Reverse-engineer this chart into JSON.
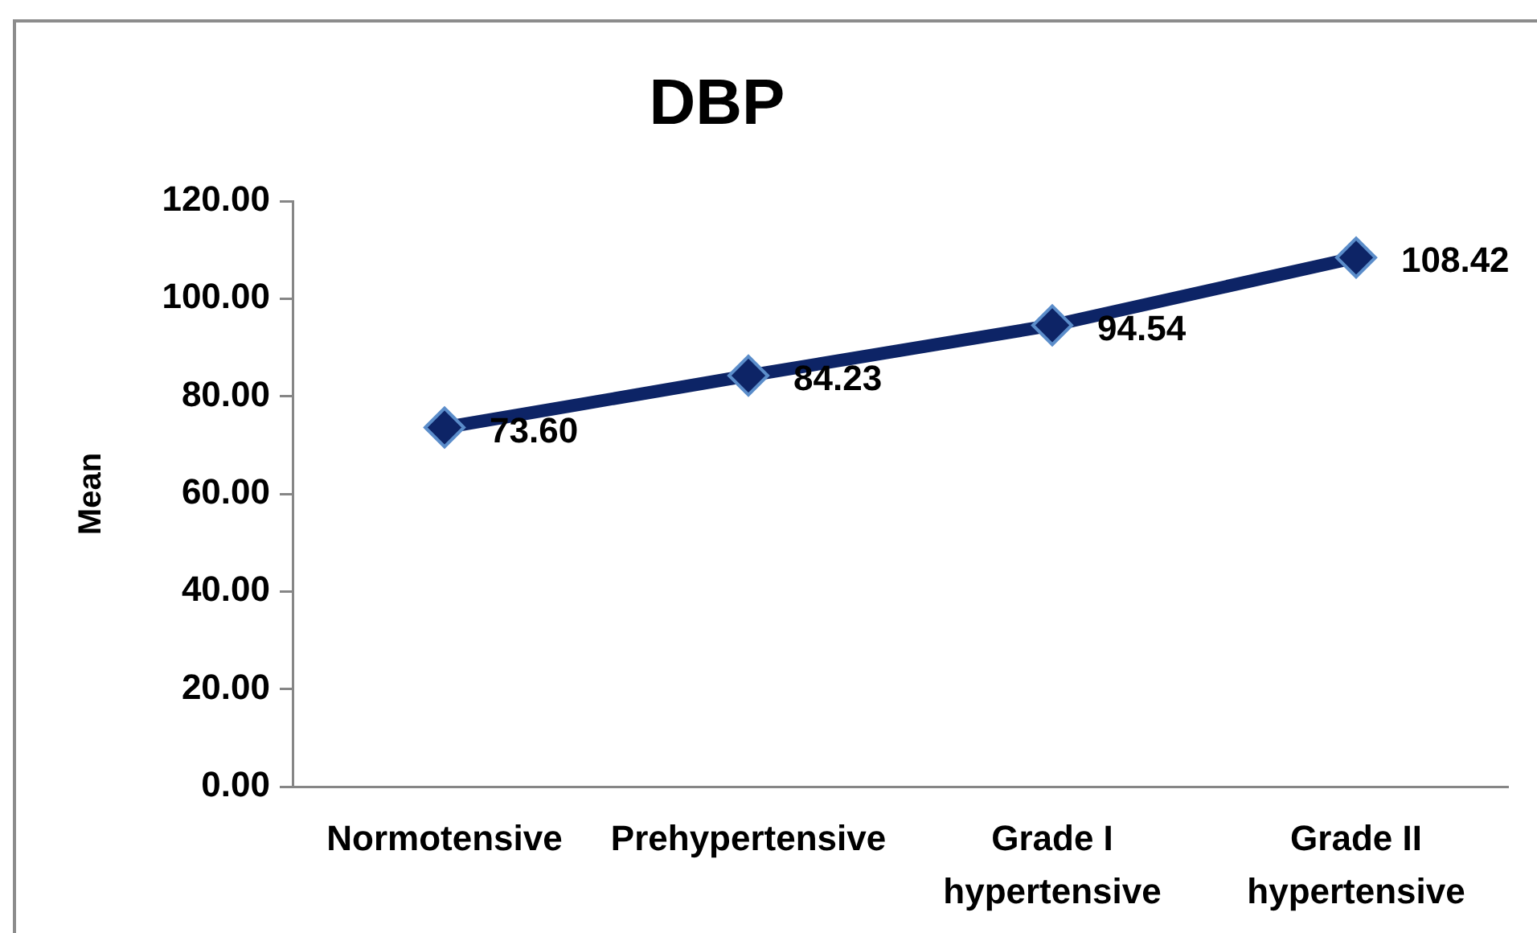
{
  "chart_data": {
    "type": "line",
    "title": "DBP",
    "ylabel": "Mean",
    "categories": [
      "Normotensive",
      "Prehypertensive",
      "Grade I hypertensive",
      "Grade II hypertensive"
    ],
    "series": [
      {
        "color": "#0d2466",
        "values": [
          73.6,
          84.23,
          94.54,
          108.42
        ],
        "value_labels": [
          "73.60",
          "84.23",
          "94.54",
          "108.42"
        ]
      }
    ],
    "ylim": [
      0,
      120
    ],
    "yticks": [
      {
        "value": 0,
        "label": "0.00"
      },
      {
        "value": 20,
        "label": "20.00"
      },
      {
        "value": 40,
        "label": "40.00"
      },
      {
        "value": 60,
        "label": "60.00"
      },
      {
        "value": 80,
        "label": "80.00"
      },
      {
        "value": 100,
        "label": "100.00"
      },
      {
        "value": 120,
        "label": "120.00"
      }
    ],
    "marker": "diamond",
    "line_style": "solid"
  }
}
